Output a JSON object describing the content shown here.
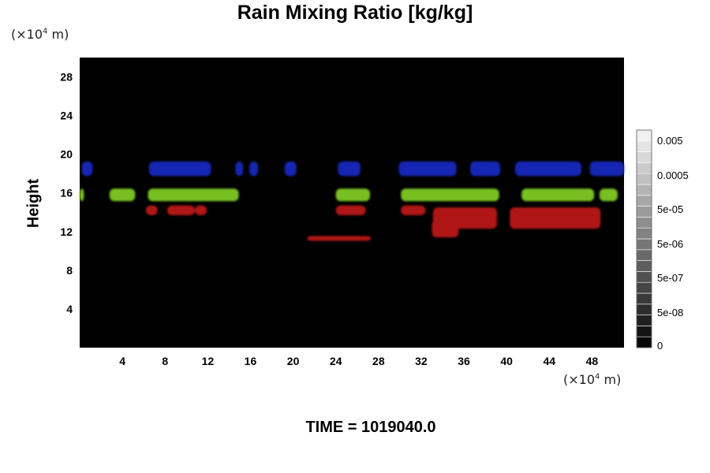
{
  "chart_data": {
    "type": "heatmap",
    "title": "Rain Mixing Ratio [kg/kg]",
    "ylabel": "Height",
    "y_unit": "(×10",
    "x_unit": "(×10",
    "unit_exponent": "4",
    "unit_suffix": " m)",
    "x_ticks": [
      "4",
      "8",
      "12",
      "16",
      "20",
      "24",
      "28",
      "32",
      "36",
      "40",
      "44",
      "48"
    ],
    "y_ticks": [
      "4",
      "8",
      "12",
      "16",
      "20",
      "24",
      "28"
    ],
    "xlim": [
      0,
      51
    ],
    "ylim": [
      0,
      30
    ],
    "background_color": "#000000",
    "colorbar_ticks": [
      "0.005",
      "0.0005",
      "5e-05",
      "5e-06",
      "5e-07",
      "5e-08",
      "0"
    ],
    "layers": [
      {
        "color": "#1428b4",
        "y_center": 18.5,
        "description_from_image": "upper band",
        "segments": [
          [
            0.2,
            1.2
          ],
          [
            6.5,
            12.3
          ],
          [
            14.6,
            15.3
          ],
          [
            15.9,
            16.7
          ],
          [
            19.2,
            20.3
          ],
          [
            24.2,
            26.3
          ],
          [
            29.9,
            35.3
          ],
          [
            36.6,
            39.4
          ],
          [
            40.8,
            47.0
          ],
          [
            47.8,
            51.0
          ]
        ]
      },
      {
        "color": "#78c020",
        "y_center": 15.8,
        "description_from_image": "middle band",
        "segments": [
          [
            0.0,
            0.4
          ],
          [
            2.8,
            5.2
          ],
          [
            6.4,
            14.9
          ],
          [
            24.0,
            27.2
          ],
          [
            30.1,
            39.3
          ],
          [
            41.4,
            48.2
          ],
          [
            48.7,
            50.4
          ]
        ]
      },
      {
        "color": "#b01212",
        "y_center": 14.2,
        "description_from_image": "lower band",
        "segments": [
          [
            6.2,
            7.3
          ],
          [
            8.2,
            10.8
          ],
          [
            10.8,
            11.9
          ],
          [
            24.0,
            26.8
          ],
          [
            30.1,
            32.4
          ],
          [
            33.1,
            39.1
          ],
          [
            40.3,
            48.8
          ],
          [
            21.3,
            27.3
          ],
          [
            33.0,
            35.5
          ]
        ]
      }
    ]
  },
  "time_label": "TIME = 1019040.0"
}
